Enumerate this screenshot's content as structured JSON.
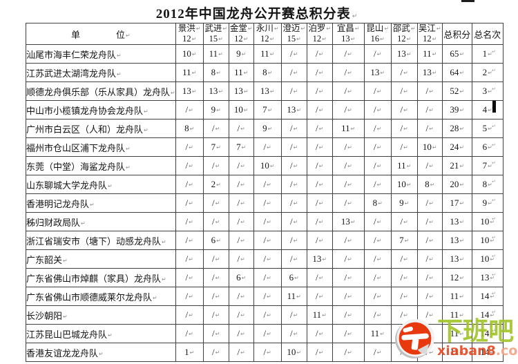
{
  "title": "2012年中国龙舟公开赛总积分表",
  "marks": {
    "cell": "↵",
    "row_end": "↵"
  },
  "table": {
    "unit_header": "单　　　　位",
    "total_header": "总积分",
    "rank_header": "总名次",
    "stations": [
      {
        "name": "景洪",
        "points": "12"
      },
      {
        "name": "武进",
        "points": "15"
      },
      {
        "name": "金堂",
        "points": "12"
      },
      {
        "name": "永川",
        "points": "12"
      },
      {
        "name": "澄迈",
        "points": "15"
      },
      {
        "name": "泊罗",
        "points": "12"
      },
      {
        "name": "宜昌",
        "points": "13"
      },
      {
        "name": "昆山",
        "points": "16"
      },
      {
        "name": "邵武",
        "points": "12"
      },
      {
        "name": "吴江",
        "points": "12"
      }
    ],
    "rows": [
      {
        "team": "汕尾市海丰仁荣龙舟队",
        "scores": [
          "10",
          "11",
          "9",
          "11",
          "/",
          "/",
          "/",
          "/",
          "13",
          "11"
        ],
        "total": "65",
        "rank": "1"
      },
      {
        "team": "江苏武进太湖湾龙舟队",
        "scores": [
          "11",
          "8",
          "11",
          "8",
          "/",
          "/",
          "/",
          "13",
          "/",
          "13"
        ],
        "total": "64",
        "rank": "2"
      },
      {
        "team": "顺德龙舟俱乐部（乐从家具）龙舟队",
        "scores": [
          "13",
          "13",
          "13",
          "13",
          "/",
          "/",
          "/",
          "/",
          "/",
          "/"
        ],
        "total": "52",
        "rank": "3"
      },
      {
        "team": "中山市小榄镇龙舟协会龙舟队",
        "scores": [
          "/",
          "9",
          "10",
          "7",
          "13",
          "/",
          "/",
          "/",
          "/",
          "/"
        ],
        "total": "39",
        "rank": "4"
      },
      {
        "team": "广州市白云区（人和）龙舟队",
        "scores": [
          "8",
          "/",
          "/",
          "9",
          "/",
          "/",
          "11",
          "/",
          "/",
          "/"
        ],
        "total": "28",
        "rank": "5"
      },
      {
        "team": "福州市仓山区浦下龙舟队",
        "scores": [
          "/",
          "7",
          "7",
          "/",
          "/",
          "/",
          "/",
          "/",
          "/",
          "10"
        ],
        "total": "24",
        "rank": "6"
      },
      {
        "team": "东莞（中堂）海鲨龙舟队",
        "scores": [
          "/",
          "/",
          "/",
          "10",
          "/",
          "/",
          "/",
          "/",
          "11",
          "/"
        ],
        "total": "21",
        "rank": "7"
      },
      {
        "team": "山东聊城大学龙舟队",
        "scores": [
          "/",
          "2",
          "/",
          "/",
          "/",
          "/",
          "/",
          "/",
          "10",
          "8"
        ],
        "total": "20",
        "rank": "8"
      },
      {
        "team": "香港明记龙舟队",
        "scores": [
          "/",
          "/",
          "/",
          "/",
          "/",
          "/",
          "/",
          "8",
          "9",
          "/"
        ],
        "total": "17",
        "rank": "9"
      },
      {
        "team": "秭归财政局队",
        "scores": [
          "/",
          "/",
          "/",
          "/",
          "/",
          "/",
          "13",
          "/",
          "/",
          "/"
        ],
        "total": "13",
        "rank": "10"
      },
      {
        "team": "浙江省瑞安市（塘下）动感龙舟队",
        "scores": [
          "/",
          "6",
          "/",
          "/",
          "/",
          "/",
          "/",
          "/",
          "7",
          "/"
        ],
        "total": "13",
        "rank": "10"
      },
      {
        "team": "广东韶关",
        "scores": [
          "/",
          "/",
          "/",
          "/",
          "/",
          "13",
          "/",
          "/",
          "/",
          "/"
        ],
        "total": "13",
        "rank": "10"
      },
      {
        "team": "广东省佛山市焯麒（家具）龙舟队",
        "scores": [
          "/",
          "/",
          "6",
          "/",
          "6",
          "/",
          "/",
          "/",
          "/",
          "/"
        ],
        "total": "12",
        "rank": "13"
      },
      {
        "team": "广东省佛山市顺德威莱尔龙舟队",
        "scores": [
          "/",
          "/",
          "/",
          "/",
          "11",
          "/",
          "/",
          "/",
          "/",
          "/"
        ],
        "total": "11",
        "rank": "14"
      },
      {
        "team": "长沙朝阳",
        "scores": [
          "/",
          "/",
          "/",
          "/",
          "/",
          "11",
          "/",
          "/",
          "/",
          "/"
        ],
        "total": "11",
        "rank": "14"
      },
      {
        "team": "江苏昆山巴城龙舟队",
        "scores": [
          "/",
          "/",
          "/",
          "/",
          "/",
          "/",
          "/",
          "11",
          "/",
          "/"
        ],
        "total": "11",
        "rank": "14"
      },
      {
        "team": "香港友谊龙龙舟队",
        "scores": [
          "1",
          "/",
          "/",
          "/",
          "10",
          "/",
          "/",
          "/",
          "/",
          "/"
        ],
        "total": "11",
        "rank": "14"
      }
    ]
  },
  "watermark": {
    "brand": "下班吧",
    "domain": "xiaban8",
    "tld": ".com",
    "brand_color": "#9dc31f",
    "url_color": "#e6461f",
    "logo_red": "#e8380d"
  }
}
